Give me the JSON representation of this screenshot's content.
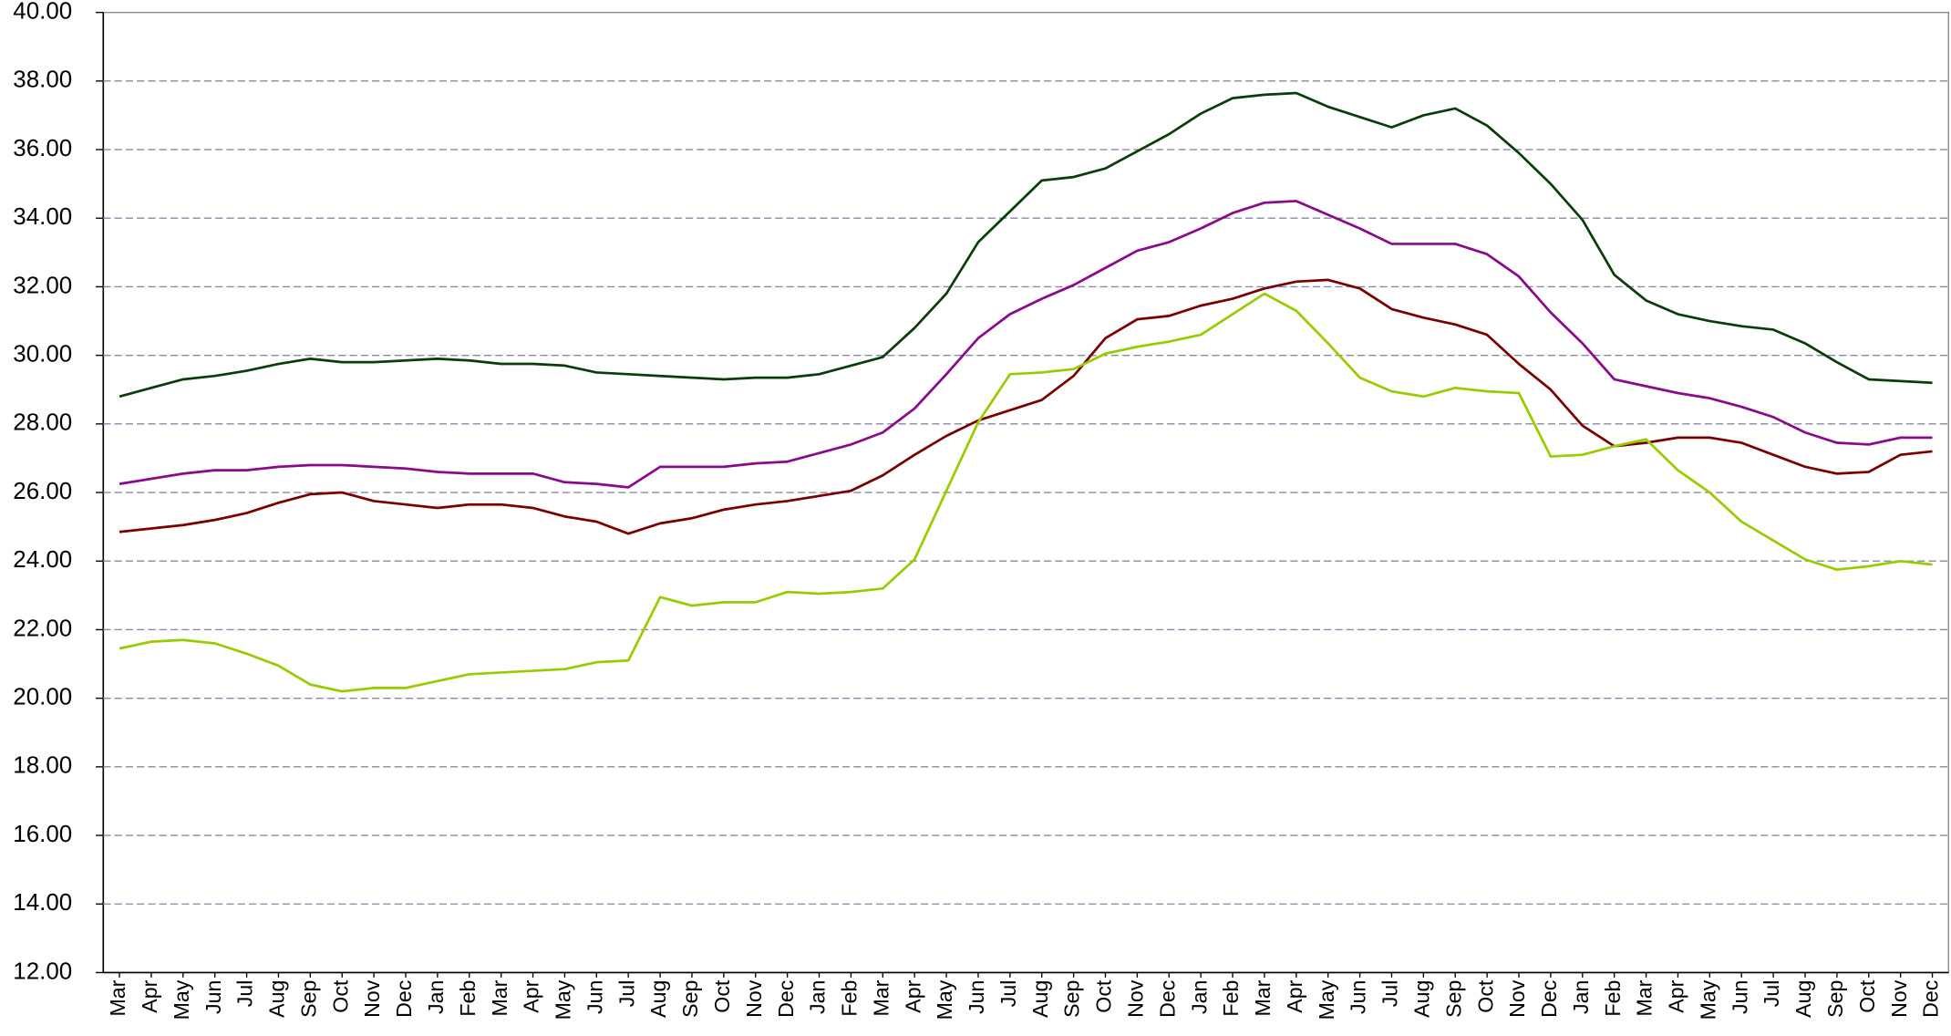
{
  "chart_data": {
    "type": "line",
    "categories": [
      "Mar",
      "Apr",
      "May",
      "Jun",
      "Jul",
      "Aug",
      "Sep",
      "Oct",
      "Nov",
      "Dec",
      "Jan",
      "Feb",
      "Mar",
      "Apr",
      "May",
      "Jun",
      "Jul",
      "Aug",
      "Sep",
      "Oct",
      "Nov",
      "Dec",
      "Jan",
      "Feb",
      "Mar",
      "Apr",
      "May",
      "Jun",
      "Jul",
      "Aug",
      "Sep",
      "Oct",
      "Nov",
      "Dec",
      "Jan",
      "Feb",
      "Mar",
      "Apr",
      "May",
      "Jun",
      "Jul",
      "Aug",
      "Sep",
      "Oct",
      "Nov",
      "Dec",
      "Jan",
      "Feb",
      "Mar",
      "Apr",
      "May",
      "Jun",
      "Jul",
      "Aug",
      "Sep",
      "Oct",
      "Nov",
      "Dec"
    ],
    "series": [
      {
        "color": "#0a3d0a",
        "values": [
          28.8,
          29.05,
          29.3,
          29.4,
          29.55,
          29.75,
          29.9,
          29.8,
          29.8,
          29.85,
          29.9,
          29.85,
          29.75,
          29.75,
          29.7,
          29.5,
          29.45,
          29.4,
          29.35,
          29.3,
          29.35,
          29.35,
          29.45,
          29.7,
          29.95,
          30.8,
          31.8,
          33.3,
          34.2,
          35.1,
          35.2,
          35.45,
          35.95,
          36.45,
          37.05,
          37.5,
          37.6,
          37.65,
          37.25,
          36.95,
          36.65,
          37.0,
          37.2,
          36.7,
          35.9,
          35.0,
          33.95,
          32.35,
          31.6,
          31.2,
          31.0,
          30.85,
          30.75,
          30.35,
          29.8,
          29.3,
          29.25,
          29.2
        ]
      },
      {
        "color": "#8b0a8b",
        "values": [
          26.25,
          26.4,
          26.55,
          26.65,
          26.65,
          26.75,
          26.8,
          26.8,
          26.75,
          26.7,
          26.6,
          26.55,
          26.55,
          26.55,
          26.3,
          26.25,
          26.15,
          26.75,
          26.75,
          26.75,
          26.85,
          26.9,
          27.15,
          27.4,
          27.75,
          28.45,
          29.45,
          30.5,
          31.2,
          31.65,
          32.05,
          32.55,
          33.05,
          33.3,
          33.7,
          34.15,
          34.45,
          34.5,
          34.1,
          33.7,
          33.25,
          33.25,
          33.25,
          32.95,
          32.3,
          31.25,
          30.35,
          29.3,
          29.1,
          28.9,
          28.75,
          28.5,
          28.2,
          27.75,
          27.45,
          27.4,
          27.6,
          27.6
        ]
      },
      {
        "color": "#7a0000",
        "values": [
          24.85,
          24.95,
          25.05,
          25.2,
          25.4,
          25.7,
          25.95,
          26.0,
          25.75,
          25.65,
          25.55,
          25.65,
          25.65,
          25.55,
          25.3,
          25.15,
          24.8,
          25.1,
          25.25,
          25.5,
          25.65,
          25.75,
          25.9,
          26.05,
          26.5,
          27.1,
          27.65,
          28.1,
          28.4,
          28.7,
          29.4,
          30.5,
          31.05,
          31.15,
          31.45,
          31.65,
          31.95,
          32.15,
          32.2,
          31.95,
          31.35,
          31.1,
          30.9,
          30.6,
          29.75,
          29.0,
          27.95,
          27.35,
          27.45,
          27.6,
          27.6,
          27.45,
          27.1,
          26.75,
          26.55,
          26.6,
          27.1,
          27.2
        ]
      },
      {
        "color": "#99cc00",
        "values": [
          21.45,
          21.65,
          21.7,
          21.6,
          21.3,
          20.95,
          20.4,
          20.2,
          20.3,
          20.3,
          20.5,
          20.7,
          20.75,
          20.8,
          20.85,
          21.05,
          21.1,
          22.95,
          22.7,
          22.8,
          22.8,
          23.1,
          23.05,
          23.1,
          23.2,
          24.05,
          26.05,
          28.05,
          29.45,
          29.5,
          29.6,
          30.05,
          30.25,
          30.4,
          30.6,
          31.2,
          31.8,
          31.3,
          30.35,
          29.35,
          28.95,
          28.8,
          29.05,
          28.95,
          28.9,
          27.05,
          27.1,
          27.35,
          27.55,
          26.65,
          26.0,
          25.15,
          24.6,
          24.05,
          23.75,
          23.85,
          24.0,
          23.9
        ]
      }
    ],
    "ylim": [
      12,
      40
    ],
    "yticks": [
      {
        "value": 12,
        "label": "12.00"
      },
      {
        "value": 14,
        "label": "14.00"
      },
      {
        "value": 16,
        "label": "16.00"
      },
      {
        "value": 18,
        "label": "18.00"
      },
      {
        "value": 20,
        "label": "20.00"
      },
      {
        "value": 22,
        "label": "22.00"
      },
      {
        "value": 24,
        "label": "24.00"
      },
      {
        "value": 26,
        "label": "26.00"
      },
      {
        "value": 28,
        "label": "28.00"
      },
      {
        "value": 30,
        "label": "30.00"
      },
      {
        "value": 32,
        "label": "32.00"
      },
      {
        "value": 34,
        "label": "34.00"
      },
      {
        "value": 36,
        "label": "36.00"
      },
      {
        "value": 38,
        "label": "38.00"
      },
      {
        "value": 40,
        "label": "40.00"
      }
    ],
    "grid": true
  }
}
